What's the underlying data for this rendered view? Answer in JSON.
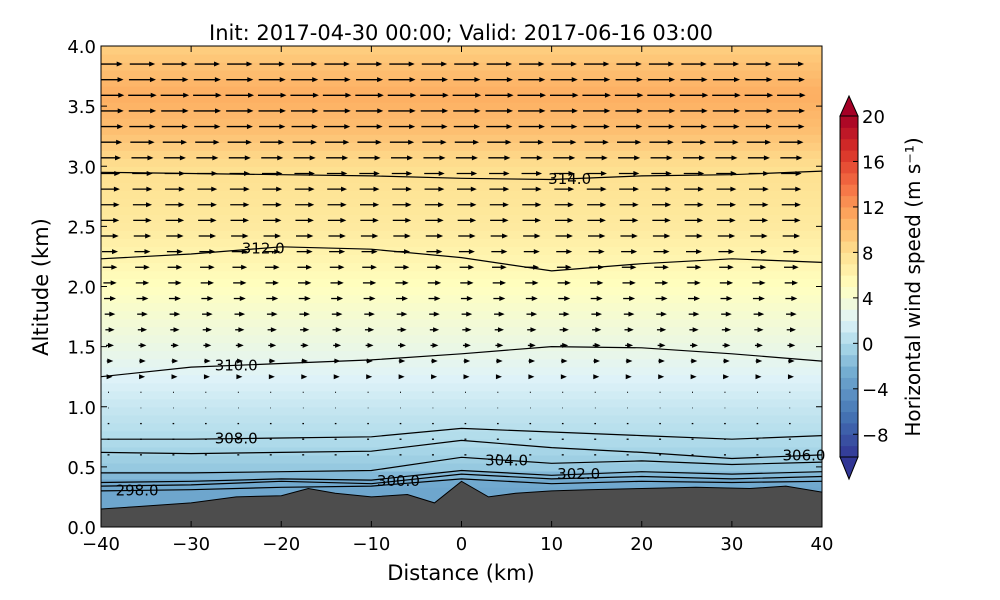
{
  "chart_data": {
    "type": "heatmap",
    "title": "Init: 2017-04-30 00:00; Valid: 2017-06-16 03:00",
    "xlabel": "Distance (km)",
    "ylabel": "Altitude (km)",
    "xlim": [
      -40,
      40
    ],
    "ylim": [
      0.0,
      4.0
    ],
    "x_ticks": [
      -40,
      -30,
      -20,
      -10,
      0,
      10,
      20,
      30,
      40
    ],
    "x_tick_labels": [
      "−40",
      "−30",
      "−20",
      "−10",
      "0",
      "10",
      "20",
      "30",
      "40"
    ],
    "y_ticks": [
      0.0,
      0.5,
      1.0,
      1.5,
      2.0,
      2.5,
      3.0,
      3.5,
      4.0
    ],
    "y_tick_labels": [
      "0.0",
      "0.5",
      "1.0",
      "1.5",
      "2.0",
      "2.5",
      "3.0",
      "3.5",
      "4.0"
    ],
    "colorbar": {
      "label": "Horizontal wind speed (m s⁻¹)",
      "range": [
        -10,
        20
      ],
      "ticks": [
        -8,
        -4,
        0,
        4,
        8,
        12,
        16,
        20
      ],
      "tick_labels": [
        "−8",
        "−4",
        "0",
        "4",
        "8",
        "12",
        "16",
        "20"
      ],
      "extend": "both"
    },
    "wind_speed_profile": [
      {
        "alt": 0.35,
        "speed": -3
      },
      {
        "alt": 0.5,
        "speed": -1
      },
      {
        "alt": 0.7,
        "speed": 0
      },
      {
        "alt": 1.0,
        "speed": 1
      },
      {
        "alt": 1.5,
        "speed": 3
      },
      {
        "alt": 2.0,
        "speed": 5
      },
      {
        "alt": 2.5,
        "speed": 7
      },
      {
        "alt": 3.0,
        "speed": 8
      },
      {
        "alt": 3.3,
        "speed": 10
      },
      {
        "alt": 3.6,
        "speed": 11
      },
      {
        "alt": 4.0,
        "speed": 9
      }
    ],
    "theta_contours": [
      {
        "value": 298.0,
        "label": "298.0",
        "label_x": -36,
        "points": [
          [
            -40,
            0.3
          ],
          [
            -30,
            0.31
          ],
          [
            -20,
            0.33
          ],
          [
            -10,
            0.34
          ],
          [
            0,
            0.4
          ],
          [
            10,
            0.36
          ],
          [
            20,
            0.38
          ],
          [
            30,
            0.37
          ],
          [
            40,
            0.38
          ]
        ]
      },
      {
        "value": 300.0,
        "label": "300.0",
        "label_x": -7,
        "points": [
          [
            -40,
            0.34
          ],
          [
            -30,
            0.35
          ],
          [
            -20,
            0.38
          ],
          [
            -10,
            0.36
          ],
          [
            0,
            0.44
          ],
          [
            10,
            0.4
          ],
          [
            20,
            0.42
          ],
          [
            30,
            0.4
          ],
          [
            40,
            0.42
          ]
        ]
      },
      {
        "value": 302.0,
        "label": "302.0",
        "label_x": 13,
        "points": [
          [
            -40,
            0.37
          ],
          [
            -30,
            0.38
          ],
          [
            -20,
            0.4
          ],
          [
            -10,
            0.39
          ],
          [
            0,
            0.47
          ],
          [
            10,
            0.43
          ],
          [
            20,
            0.46
          ],
          [
            30,
            0.44
          ],
          [
            40,
            0.46
          ]
        ]
      },
      {
        "value": 304.0,
        "label": "304.0",
        "label_x": 5,
        "points": [
          [
            -40,
            0.45
          ],
          [
            -30,
            0.45
          ],
          [
            -20,
            0.46
          ],
          [
            -10,
            0.47
          ],
          [
            0,
            0.58
          ],
          [
            10,
            0.53
          ],
          [
            20,
            0.55
          ],
          [
            30,
            0.52
          ],
          [
            40,
            0.54
          ]
        ]
      },
      {
        "value": 306.0,
        "label": "306.0",
        "label_x": 38,
        "points": [
          [
            -40,
            0.62
          ],
          [
            -30,
            0.61
          ],
          [
            -20,
            0.62
          ],
          [
            -10,
            0.63
          ],
          [
            0,
            0.72
          ],
          [
            10,
            0.66
          ],
          [
            20,
            0.62
          ],
          [
            30,
            0.57
          ],
          [
            40,
            0.6
          ]
        ]
      },
      {
        "value": 308.0,
        "label": "308.0",
        "label_x": -25,
        "points": [
          [
            -40,
            0.73
          ],
          [
            -30,
            0.73
          ],
          [
            -20,
            0.74
          ],
          [
            -10,
            0.75
          ],
          [
            0,
            0.82
          ],
          [
            10,
            0.79
          ],
          [
            20,
            0.76
          ],
          [
            30,
            0.73
          ],
          [
            40,
            0.76
          ]
        ]
      },
      {
        "value": 310.0,
        "label": "310.0",
        "label_x": -25,
        "points": [
          [
            -40,
            1.25
          ],
          [
            -30,
            1.33
          ],
          [
            -20,
            1.36
          ],
          [
            -10,
            1.39
          ],
          [
            0,
            1.44
          ],
          [
            10,
            1.5
          ],
          [
            20,
            1.49
          ],
          [
            30,
            1.44
          ],
          [
            40,
            1.38
          ]
        ]
      },
      {
        "value": 312.0,
        "label": "312.0",
        "label_x": -22,
        "points": [
          [
            -40,
            2.23
          ],
          [
            -30,
            2.27
          ],
          [
            -20,
            2.33
          ],
          [
            -10,
            2.31
          ],
          [
            0,
            2.24
          ],
          [
            10,
            2.13
          ],
          [
            20,
            2.19
          ],
          [
            30,
            2.23
          ],
          [
            40,
            2.2
          ]
        ]
      },
      {
        "value": 314.0,
        "label": "314.0",
        "label_x": 12,
        "points": [
          [
            -40,
            2.95
          ],
          [
            -30,
            2.94
          ],
          [
            -20,
            2.93
          ],
          [
            -10,
            2.92
          ],
          [
            0,
            2.9
          ],
          [
            10,
            2.89
          ],
          [
            20,
            2.92
          ],
          [
            30,
            2.93
          ],
          [
            40,
            2.96
          ]
        ]
      }
    ],
    "terrain": [
      [
        -40,
        0.15
      ],
      [
        -36,
        0.17
      ],
      [
        -30,
        0.2
      ],
      [
        -25,
        0.25
      ],
      [
        -20,
        0.26
      ],
      [
        -17,
        0.32
      ],
      [
        -14,
        0.28
      ],
      [
        -10,
        0.25
      ],
      [
        -6,
        0.27
      ],
      [
        -3,
        0.2
      ],
      [
        0,
        0.38
      ],
      [
        3,
        0.25
      ],
      [
        6,
        0.28
      ],
      [
        10,
        0.3
      ],
      [
        14,
        0.31
      ],
      [
        20,
        0.32
      ],
      [
        26,
        0.33
      ],
      [
        32,
        0.32
      ],
      [
        36,
        0.34
      ],
      [
        40,
        0.29
      ]
    ]
  }
}
